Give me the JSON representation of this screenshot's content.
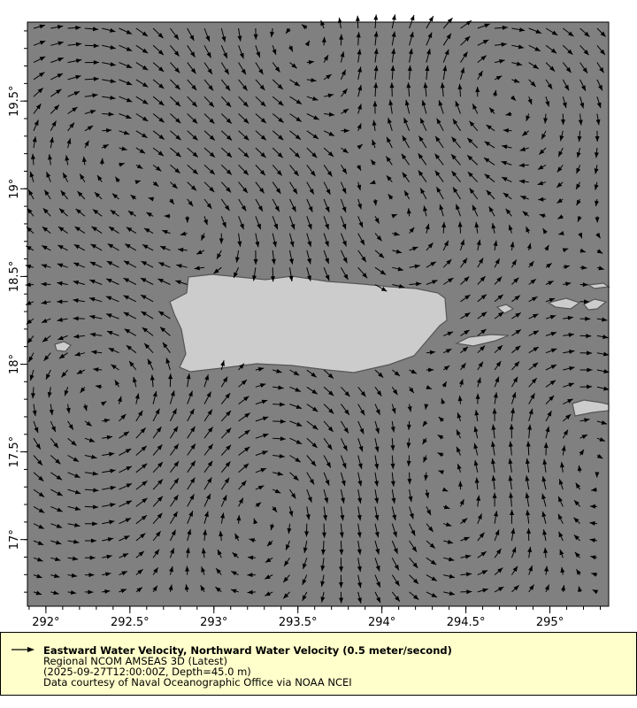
{
  "chart_data": {
    "type": "vector-map",
    "x_ticks": [
      "292°",
      "292.5°",
      "293°",
      "293.5°",
      "294°",
      "294.5°",
      "295°"
    ],
    "x_tick_values": [
      292,
      292.5,
      293,
      293.5,
      294,
      294.5,
      295
    ],
    "y_ticks": [
      "19.5°",
      "19°",
      "18.5°",
      "18°",
      "17.5°",
      "17°"
    ],
    "y_tick_values": [
      19.5,
      19,
      18.5,
      18,
      17.5,
      17
    ],
    "xlim": [
      291.89,
      295.35
    ],
    "ylim": [
      16.62,
      19.95
    ],
    "reference_vector": "0.5 meter/second",
    "colors": {
      "ocean": "#808080",
      "land": "#cccccc",
      "coast": "#555555",
      "arrows": "#000000",
      "legend_bg": "#ffffcc"
    }
  },
  "legend": {
    "title": "Eastward Water Velocity, Northward Water Velocity (0.5 meter/second)",
    "dataset": "Regional NCOM AMSEAS 3D (Latest)",
    "time_depth": "(2025-09-27T12:00:00Z, Depth=45.0 m)",
    "credit": "Data courtesy of Naval Oceanographic Office via NOAA NCEI"
  }
}
